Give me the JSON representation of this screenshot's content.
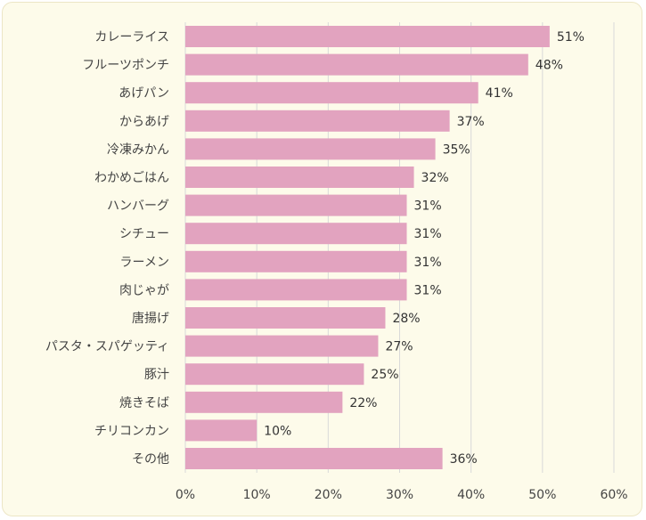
{
  "chart_data": {
    "type": "bar",
    "orientation": "horizontal",
    "categories": [
      "カレーライス",
      "フルーツポンチ",
      "あげパン",
      "からあげ",
      "冷凍みかん",
      "わかめごはん",
      "ハンバーグ",
      "シチュー",
      "ラーメン",
      "肉じゃが",
      "唐揚げ",
      "パスタ・スパゲッティ",
      "豚汁",
      "焼きそば",
      "チリコンカン",
      "その他"
    ],
    "values": [
      51,
      48,
      41,
      37,
      35,
      32,
      31,
      31,
      31,
      31,
      28,
      27,
      25,
      22,
      10,
      36
    ],
    "value_labels": [
      "51%",
      "48%",
      "41%",
      "37%",
      "35%",
      "32%",
      "31%",
      "31%",
      "31%",
      "31%",
      "28%",
      "27%",
      "25%",
      "22%",
      "10%",
      "36%"
    ],
    "xlim": [
      0,
      60
    ],
    "x_ticks": [
      0,
      10,
      20,
      30,
      40,
      50,
      60
    ],
    "x_tick_labels": [
      "0%",
      "10%",
      "20%",
      "30%",
      "40%",
      "50%",
      "60%"
    ],
    "grid": true,
    "legend": "none",
    "colors": {
      "bar": "#e2a3bf",
      "grid": "#d9d9d9",
      "background": "#fdfbea"
    }
  }
}
